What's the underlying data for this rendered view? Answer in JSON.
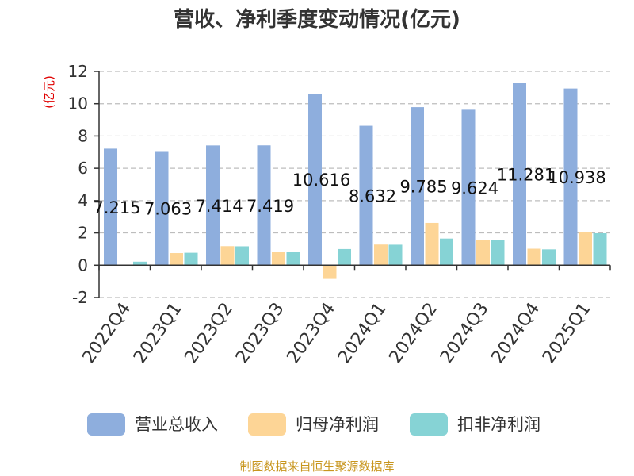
{
  "chart_data": {
    "type": "bar",
    "title": "营收、净利季度变动情况(亿元)",
    "ylabel": "(亿元)",
    "ylim": [
      -2,
      12
    ],
    "yticks": [
      -2,
      0,
      2,
      4,
      6,
      8,
      10,
      12
    ],
    "grid": true,
    "legend_position": "bottom",
    "categories": [
      "2022Q4",
      "2023Q1",
      "2023Q2",
      "2023Q3",
      "2023Q4",
      "2024Q1",
      "2024Q2",
      "2024Q3",
      "2024Q4",
      "2025Q1"
    ],
    "series": [
      {
        "name": "营业总收入",
        "color": "#8eaedd",
        "values": [
          7.215,
          7.063,
          7.414,
          7.419,
          10.616,
          8.632,
          9.785,
          9.624,
          11.281,
          10.938
        ],
        "data_labels": [
          "7.215",
          "7.063",
          "7.414",
          "7.419",
          "10.616",
          "8.632",
          "9.785",
          "9.624",
          "11.281",
          "10.938"
        ]
      },
      {
        "name": "归母净利润",
        "color": "#fdd596",
        "values": [
          0.0,
          0.75,
          1.18,
          0.8,
          -0.85,
          1.28,
          2.62,
          1.57,
          1.02,
          2.05
        ]
      },
      {
        "name": "扣非净利润",
        "color": "#86d3d5",
        "values": [
          0.22,
          0.77,
          1.17,
          0.8,
          1.0,
          1.27,
          1.65,
          1.55,
          0.98,
          1.98
        ]
      }
    ],
    "source": "制图数据来自恒生聚源数据库"
  }
}
